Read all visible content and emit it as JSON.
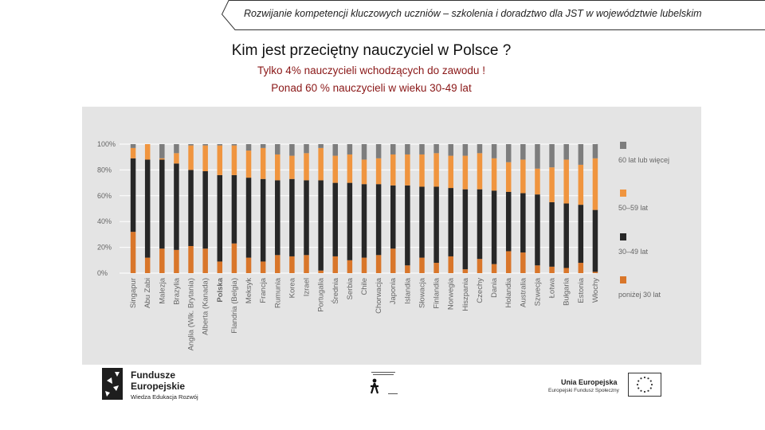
{
  "header": {
    "text": "Rozwijanie kompetencji kluczowych uczniów – szkolenia i doradztwo dla JST w województwie lubelskim"
  },
  "title": "Kim jest przeciętny nauczyciel w Polsce ?",
  "subtitle_1": "Tylko 4% nauczycieli wchodzących do zawodu !",
  "subtitle_2": "Ponad 60 % nauczycieli w wieku 30-49 lat",
  "chart_data": {
    "type": "bar",
    "stacked": true,
    "normalized": true,
    "categories": [
      "Singapur",
      "Abu Zabi",
      "Malezja",
      "Brazylia",
      "Anglia (Wlk. Brytania)",
      "Alberta (Kanada)",
      "Polska",
      "Flandria (Belgia)",
      "Meksyk",
      "Francja",
      "Rumunia",
      "Korea",
      "Izrael",
      "Portugalia",
      "Średnia",
      "Serbia",
      "Chile",
      "Chorwacja",
      "Japonia",
      "Islandia",
      "Słowacja",
      "Finlandia",
      "Norwegia",
      "Hiszpania",
      "Czechy",
      "Dania",
      "Holandia",
      "Australia",
      "Szwecja",
      "Łotwa",
      "Bułgaria",
      "Estonia",
      "Włochy"
    ],
    "series": [
      {
        "name": "poniżej 30 lat",
        "color": "#d9762a",
        "values": [
          32,
          12,
          19,
          18,
          21,
          19,
          9,
          23,
          12,
          9,
          14,
          13,
          14,
          2,
          13,
          10,
          12,
          14,
          19,
          6,
          12,
          8,
          13,
          3,
          11,
          7,
          17,
          16,
          6,
          5,
          4,
          8,
          1
        ]
      },
      {
        "name": "30–49 lat",
        "color": "#272727",
        "values": [
          57,
          76,
          69,
          67,
          59,
          60,
          67,
          53,
          62,
          64,
          58,
          60,
          58,
          70,
          57,
          60,
          57,
          55,
          49,
          62,
          55,
          59,
          53,
          62,
          54,
          57,
          46,
          46,
          55,
          50,
          50,
          45,
          48
        ]
      },
      {
        "name": "50–59 lat",
        "color": "#f0953f",
        "values": [
          8,
          12,
          1,
          8,
          19,
          20,
          23,
          23,
          21,
          24,
          20,
          18,
          21,
          25,
          21,
          22,
          19,
          20,
          24,
          24,
          25,
          26,
          25,
          26,
          28,
          25,
          23,
          26,
          20,
          27,
          34,
          31,
          40
        ]
      },
      {
        "name": "60 lat lub więcej",
        "color": "#7d7d7d",
        "values": [
          3,
          0,
          11,
          7,
          1,
          1,
          1,
          1,
          5,
          3,
          8,
          9,
          7,
          3,
          9,
          8,
          12,
          11,
          8,
          8,
          8,
          7,
          9,
          9,
          7,
          11,
          14,
          12,
          19,
          18,
          12,
          16,
          11
        ]
      }
    ],
    "y_ticks": [
      "100%",
      "80%",
      "60%",
      "40%",
      "20%",
      "0%"
    ],
    "ylim": [
      0,
      100
    ],
    "legend": [
      "60 lat lub więcej",
      "50–59 lat",
      "30–49 lat",
      "poniżej 30 lat"
    ],
    "legend_position": "right",
    "highlight_category": "Polska"
  },
  "logo_fe": {
    "line1": "Fundusze",
    "line2": "Europejskie",
    "line3": "Wiedza Edukacja Rozwój"
  },
  "logo_ue": {
    "line1": "Unia Europejska",
    "line2": "Europejski Fundusz Społeczny"
  },
  "colors": {
    "subtitle": "#8a1717",
    "panel": "#e4e4e4"
  }
}
